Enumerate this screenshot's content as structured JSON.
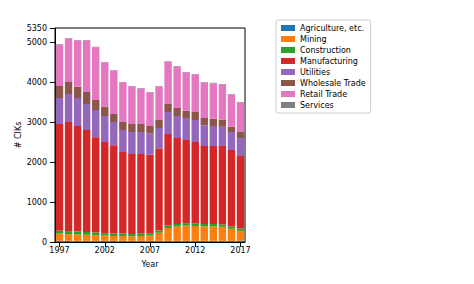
{
  "chart_data": {
    "type": "bar",
    "stacked": true,
    "x_label": "Year",
    "y_label": "# CIKs",
    "categories": [
      "1997",
      null,
      null,
      null,
      null,
      "2002",
      null,
      null,
      null,
      null,
      "2007",
      null,
      null,
      null,
      null,
      "2012",
      null,
      null,
      null,
      null,
      "2017"
    ],
    "ylim": [
      0,
      5350
    ],
    "yticks": [
      0,
      1000,
      2000,
      3000,
      4000,
      5000
    ],
    "legend": "right",
    "grid": false,
    "series": [
      {
        "name": "Agriculture, etc.",
        "color": "#1f77b4",
        "values": [
          30,
          30,
          30,
          30,
          30,
          30,
          30,
          30,
          30,
          30,
          30,
          30,
          30,
          30,
          30,
          30,
          30,
          30,
          30,
          30,
          30
        ]
      },
      {
        "name": "Mining",
        "color": "#ff7f0e",
        "values": [
          180,
          170,
          160,
          150,
          140,
          130,
          120,
          120,
          110,
          120,
          130,
          200,
          320,
          360,
          380,
          370,
          360,
          360,
          350,
          300,
          250
        ]
      },
      {
        "name": "Construction",
        "color": "#2ca02c",
        "values": [
          70,
          70,
          70,
          70,
          70,
          60,
          60,
          60,
          60,
          60,
          60,
          60,
          60,
          60,
          60,
          60,
          60,
          60,
          60,
          60,
          60
        ]
      },
      {
        "name": "Manufacturing",
        "color": "#d62728",
        "values": [
          2670,
          2730,
          2640,
          2550,
          2380,
          2280,
          2210,
          2040,
          2000,
          1990,
          1960,
          2050,
          2290,
          2150,
          2080,
          2040,
          1950,
          1950,
          1960,
          1910,
          1810
        ]
      },
      {
        "name": "Utilities",
        "color": "#9467bd",
        "values": [
          650,
          700,
          700,
          650,
          680,
          650,
          580,
          550,
          550,
          550,
          540,
          510,
          550,
          550,
          550,
          550,
          520,
          500,
          480,
          450,
          450
        ]
      },
      {
        "name": "Wholesale Trade",
        "color": "#8c564b",
        "values": [
          300,
          300,
          280,
          300,
          250,
          230,
          200,
          200,
          200,
          200,
          180,
          200,
          200,
          200,
          180,
          200,
          180,
          180,
          180,
          130,
          150
        ]
      },
      {
        "name": "Retail Trade",
        "color": "#e377c2",
        "values": [
          1040,
          1090,
          1160,
          1290,
          1320,
          1110,
          1090,
          990,
          940,
          890,
          840,
          840,
          1060,
          1040,
          960,
          940,
          890,
          890,
          880,
          810,
          740
        ]
      },
      {
        "name": "Services",
        "color": "#7f7f7f",
        "values": [
          10,
          10,
          10,
          10,
          10,
          10,
          10,
          10,
          10,
          10,
          10,
          10,
          10,
          10,
          10,
          10,
          10,
          10,
          10,
          10,
          10
        ]
      }
    ]
  }
}
